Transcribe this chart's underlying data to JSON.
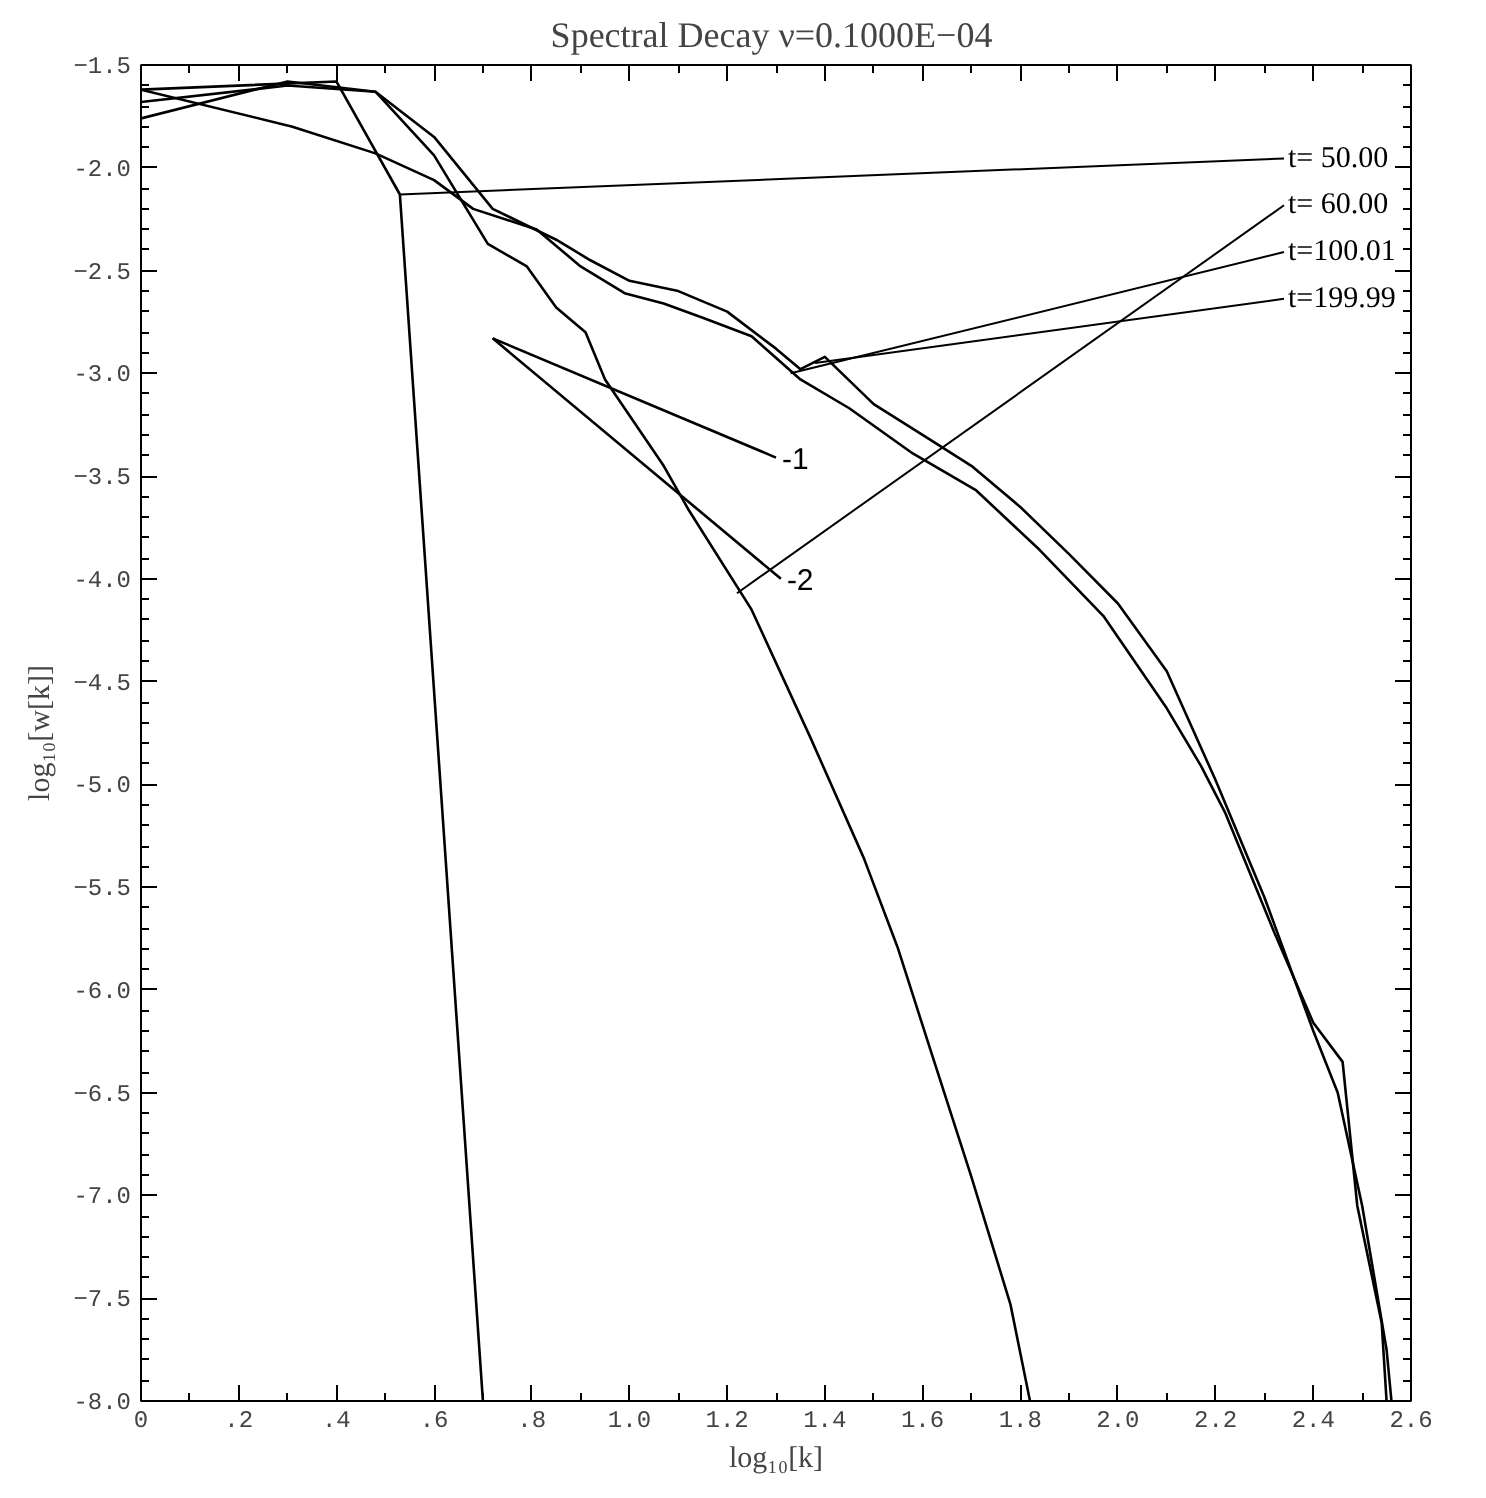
{
  "chart_data": {
    "type": "line",
    "title": "Spectral Decay  ν=0.1000E−04",
    "xlabel": "log₁₀[k]",
    "ylabel": "log₁₀[w[k]]",
    "xlim": [
      0,
      2.6
    ],
    "ylim": [
      -8.0,
      -1.5
    ],
    "xticks": [
      {
        "value": 0,
        "label": "0"
      },
      {
        "value": 0.2,
        "label": ".2"
      },
      {
        "value": 0.4,
        "label": ".4"
      },
      {
        "value": 0.6,
        "label": ".6"
      },
      {
        "value": 0.8,
        "label": ".8"
      },
      {
        "value": 1.0,
        "label": "1.0"
      },
      1.2,
      1.4,
      1.6,
      1.8,
      {
        "value": 2.0,
        "label": "2.0"
      },
      2.2,
      2.4,
      2.6
    ],
    "yticks": [
      -1.5,
      {
        "value": -2.0,
        "label": "-2.0"
      },
      -2.5,
      {
        "value": -3.0,
        "label": "-3.0"
      },
      -3.5,
      {
        "value": -4.0,
        "label": "-4.0"
      },
      -4.5,
      {
        "value": -5.0,
        "label": "-5.0"
      },
      -5.5,
      {
        "value": -6.0,
        "label": "-6.0"
      },
      -6.5,
      {
        "value": -7.0,
        "label": "-7.0"
      },
      -7.5,
      {
        "value": -8.0,
        "label": "-8.0"
      }
    ],
    "grid": false,
    "line_style": "solid",
    "series": [
      {
        "color": "#000000",
        "x": [
          0,
          0.4,
          0.53,
          0.7
        ],
        "values": [
          -1.62,
          -1.58,
          -2.13,
          -8.0
        ]
      },
      {
        "color": "#000000",
        "x": [
          0,
          0.3,
          0.48,
          0.6,
          0.71,
          0.79,
          0.85,
          0.91,
          0.95,
          1.07,
          1.12,
          1.25,
          1.37,
          1.48,
          1.55,
          1.62,
          1.7,
          1.78,
          1.82
        ],
        "values": [
          -1.76,
          -1.58,
          -1.63,
          -1.94,
          -2.37,
          -2.48,
          -2.68,
          -2.8,
          -3.03,
          -3.45,
          -3.66,
          -4.15,
          -4.77,
          -5.36,
          -5.8,
          -6.32,
          -6.91,
          -7.53,
          -8.0
        ]
      },
      {
        "color": "#000000",
        "x": [
          0,
          0.31,
          0.48,
          0.6,
          0.68,
          0.81,
          0.9,
          0.99,
          1.07,
          1.15,
          1.25,
          1.35,
          1.45,
          1.58,
          1.71,
          1.84,
          1.97,
          2.1,
          2.17,
          2.22,
          2.32,
          2.4,
          2.46,
          2.49,
          2.54,
          2.55
        ],
        "values": [
          -1.62,
          -1.8,
          -1.93,
          -2.06,
          -2.2,
          -2.3,
          -2.48,
          -2.61,
          -2.66,
          -2.73,
          -2.82,
          -3.03,
          -3.17,
          -3.39,
          -3.57,
          -3.86,
          -4.18,
          -4.63,
          -4.91,
          -5.14,
          -5.72,
          -6.16,
          -6.35,
          -7.05,
          -7.62,
          -8.0
        ]
      },
      {
        "color": "#000000",
        "x": [
          0,
          0.3,
          0.48,
          0.6,
          0.72,
          0.85,
          0.92,
          1.0,
          1.1,
          1.2,
          1.3,
          1.35,
          1.4,
          1.5,
          1.6,
          1.7,
          1.8,
          1.9,
          2.0,
          2.1,
          2.2,
          2.3,
          2.4,
          2.45,
          2.5,
          2.55,
          2.56
        ],
        "values": [
          -1.68,
          -1.6,
          -1.63,
          -1.85,
          -2.2,
          -2.35,
          -2.45,
          -2.55,
          -2.6,
          -2.7,
          -2.88,
          -2.98,
          -2.92,
          -3.15,
          -3.3,
          -3.45,
          -3.65,
          -3.88,
          -4.12,
          -4.45,
          -4.98,
          -5.55,
          -6.2,
          -6.5,
          -7.05,
          -7.75,
          -8.0
        ]
      },
      {
        "name": "-1",
        "color": "#000000",
        "x": [
          0.72,
          1.3
        ],
        "values": [
          -2.83,
          -3.41
        ]
      },
      {
        "name": "-2",
        "color": "#000000",
        "x": [
          0.72,
          1.31
        ],
        "values": [
          -2.83,
          -4.0
        ]
      }
    ],
    "annotations": [
      {
        "text": "t= 50.00",
        "x": 0.53,
        "y": -2.13
      },
      {
        "text": "t= 60.00",
        "x": 1.22,
        "y": -4.07
      },
      {
        "text": "t=100.01",
        "x": 1.33,
        "y": -3.0
      },
      {
        "text": "t=199.99",
        "x": 1.38,
        "y": -2.95
      }
    ]
  }
}
